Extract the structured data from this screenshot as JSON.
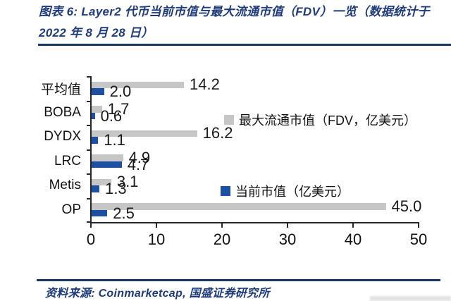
{
  "header": {
    "title_line1": "图表 6: Layer2 代币当前市值与最大流通市值（FDV）一览（数据统计于",
    "title_line2": "2022 年 8 月 28 日）"
  },
  "chart_data": {
    "type": "bar",
    "orientation": "horizontal",
    "title": "Layer2 代币当前市值与最大流通市值（FDV）一览",
    "categories": [
      "平均值",
      "BOBA",
      "DYDX",
      "LRC",
      "Metis",
      "OP"
    ],
    "series": [
      {
        "name": "最大流通市值（FDV，亿美元）",
        "color": "#c6c6c6",
        "values": [
          14.2,
          1.7,
          16.2,
          4.9,
          3.1,
          45.0
        ]
      },
      {
        "name": "当前市值（亿美元）",
        "color": "#1d4fa3",
        "values": [
          2.0,
          0.6,
          1.1,
          4.7,
          1.3,
          2.5
        ]
      }
    ],
    "x_ticks": [
      0,
      10,
      20,
      30,
      40,
      50
    ],
    "xlim": [
      0,
      50
    ],
    "grid": false,
    "legend_position": "inside-right",
    "value_label_decimals": 1
  },
  "footer": {
    "source": "资料来源: Coinmarketcap, 国盛证券研究所"
  },
  "colors": {
    "navy_rule": "#17375e",
    "title_text": "#1f3c78",
    "axis": "#262626",
    "bar_gray": "#c6c6c6",
    "bar_blue": "#1d4fa3",
    "value_label": "#1a1a1a"
  }
}
